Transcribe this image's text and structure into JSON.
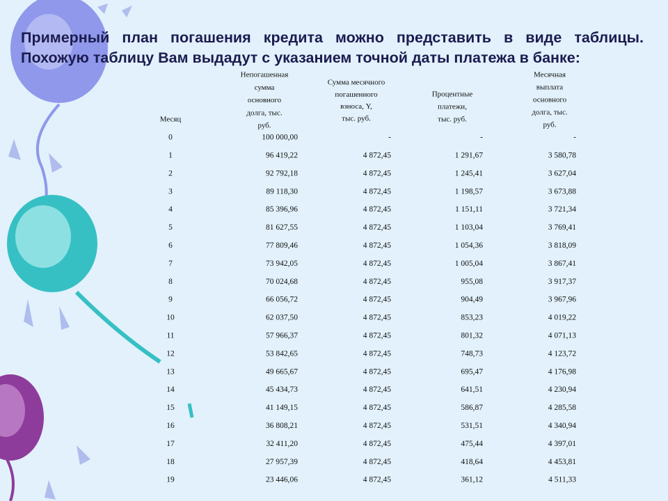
{
  "title": "Примерный план погашения кредита можно представить в виде таблицы. Похожую таблицу Вам выдадут с указанием точной даты платежа в банке:",
  "table": {
    "headers": [
      [
        "Месяц"
      ],
      [
        "Непогашенная",
        "сумма",
        "основного",
        "долга, тыс.",
        "руб."
      ],
      [
        "Сумма месячного",
        "погашенного",
        "взноса, Y,",
        "тыс. руб."
      ],
      [
        "Процентные",
        "платежи,",
        "тыс. руб."
      ],
      [
        "Месячная",
        "выплата",
        "основного",
        "долга, тыс.",
        "руб."
      ]
    ],
    "rows": [
      [
        "0",
        "100 000,00",
        "-",
        "-",
        "-"
      ],
      [
        "1",
        "96 419,22",
        "4 872,45",
        "1 291,67",
        "3 580,78"
      ],
      [
        "2",
        "92 792,18",
        "4 872,45",
        "1 245,41",
        "3 627,04"
      ],
      [
        "3",
        "89 118,30",
        "4 872,45",
        "1 198,57",
        "3 673,88"
      ],
      [
        "4",
        "85 396,96",
        "4 872,45",
        "1 151,11",
        "3 721,34"
      ],
      [
        "5",
        "81 627,55",
        "4 872,45",
        "1 103,04",
        "3 769,41"
      ],
      [
        "6",
        "77 809,46",
        "4 872,45",
        "1 054,36",
        "3 818,09"
      ],
      [
        "7",
        "73 942,05",
        "4 872,45",
        "1 005,04",
        "3 867,41"
      ],
      [
        "8",
        "70 024,68",
        "4 872,45",
        "955,08",
        "3 917,37"
      ],
      [
        "9",
        "66 056,72",
        "4 872,45",
        "904,49",
        "3 967,96"
      ],
      [
        "10",
        "62 037,50",
        "4 872,45",
        "853,23",
        "4 019,22"
      ],
      [
        "11",
        "57 966,37",
        "4 872,45",
        "801,32",
        "4 071,13"
      ],
      [
        "12",
        "53 842,65",
        "4 872,45",
        "748,73",
        "4 123,72"
      ],
      [
        "13",
        "49 665,67",
        "4 872,45",
        "695,47",
        "4 176,98"
      ],
      [
        "14",
        "45 434,73",
        "4 872,45",
        "641,51",
        "4 230,94"
      ],
      [
        "15",
        "41 149,15",
        "4 872,45",
        "586,87",
        "4 285,58"
      ],
      [
        "16",
        "36 808,21",
        "4 872,45",
        "531,51",
        "4 340,94"
      ],
      [
        "17",
        "32 411,20",
        "4 872,45",
        "475,44",
        "4 397,01"
      ],
      [
        "18",
        "27 957,39",
        "4 872,45",
        "418,64",
        "4 453,81"
      ],
      [
        "19",
        "23 446,06",
        "4 872,45",
        "361,12",
        "4 511,33"
      ]
    ]
  }
}
